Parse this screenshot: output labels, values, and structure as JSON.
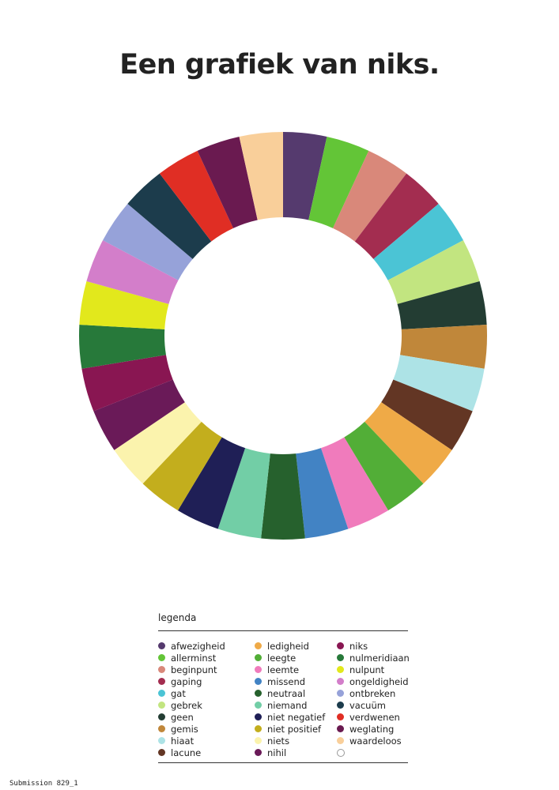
{
  "title": "Een grafiek van niks.",
  "legend_title": "legenda",
  "footer": "Submission 829_1",
  "chart_data": {
    "type": "pie",
    "donut": true,
    "title": "Een grafiek van niks.",
    "legend_placement": "bottom",
    "series": [
      {
        "name": "afwezigheid",
        "value": 1,
        "color": "#553A6E"
      },
      {
        "name": "allerminst",
        "value": 1,
        "color": "#63C537"
      },
      {
        "name": "beginpunt",
        "value": 1,
        "color": "#D9887A"
      },
      {
        "name": "gaping",
        "value": 1,
        "color": "#A32D50"
      },
      {
        "name": "gat",
        "value": 1,
        "color": "#4BC4D5"
      },
      {
        "name": "gebrek",
        "value": 1,
        "color": "#C2E580"
      },
      {
        "name": "geen",
        "value": 1,
        "color": "#233D33"
      },
      {
        "name": "gemis",
        "value": 1,
        "color": "#C0873A"
      },
      {
        "name": "hiaat",
        "value": 1,
        "color": "#ADE3E6"
      },
      {
        "name": "lacune",
        "value": 1,
        "color": "#633624"
      },
      {
        "name": "ledigheid",
        "value": 1,
        "color": "#EFAA47"
      },
      {
        "name": "leegte",
        "value": 1,
        "color": "#52AE37"
      },
      {
        "name": "leemte",
        "value": 1,
        "color": "#F07BBC"
      },
      {
        "name": "missend",
        "value": 1,
        "color": "#4283C4"
      },
      {
        "name": "neutraal",
        "value": 1,
        "color": "#26612D"
      },
      {
        "name": "niemand",
        "value": 1,
        "color": "#72CEA6"
      },
      {
        "name": "niet negatief",
        "value": 1,
        "color": "#1F1F56"
      },
      {
        "name": "niet positief",
        "value": 1,
        "color": "#C3AE1D"
      },
      {
        "name": "niets",
        "value": 1,
        "color": "#FBF3AD"
      },
      {
        "name": "nihil",
        "value": 1,
        "color": "#6A1A58"
      },
      {
        "name": "niks",
        "value": 1,
        "color": "#891652"
      },
      {
        "name": "nulmeridiaan",
        "value": 1,
        "color": "#27793A"
      },
      {
        "name": "nulpunt",
        "value": 1,
        "color": "#E2E81C"
      },
      {
        "name": "ongeldigheid",
        "value": 1,
        "color": "#D37ECA"
      },
      {
        "name": "ontbreken",
        "value": 1,
        "color": "#96A2D9"
      },
      {
        "name": "vacuüm",
        "value": 1,
        "color": "#1C3C4C"
      },
      {
        "name": "verdwenen",
        "value": 1,
        "color": "#E02E24"
      },
      {
        "name": "weglating",
        "value": 1,
        "color": "#6A1A50"
      },
      {
        "name": "waardeloos",
        "value": 1,
        "color": "#F9CF9A"
      },
      {
        "name": "",
        "value": 0,
        "color": "#ffffff"
      }
    ]
  }
}
